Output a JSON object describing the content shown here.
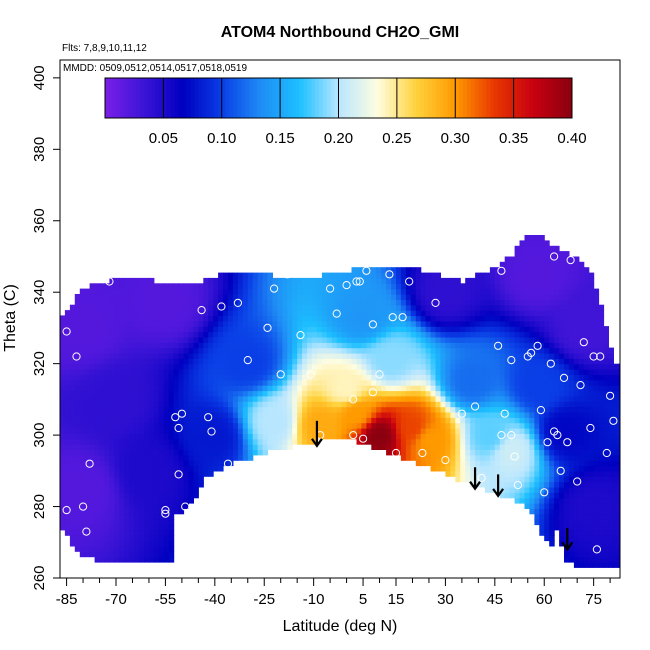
{
  "chart_data": {
    "type": "heatmap",
    "title": "ATOM4 Northbound CH2O_GMI",
    "flights_label": "Flts: 7,8,9,10,11,12",
    "dates_label": "MMDD: 0509,0512,0514,0517,0518,0519",
    "xlabel": "Latitude (deg N)",
    "ylabel": "Theta (C)",
    "xlim": [
      -87,
      83
    ],
    "ylim": [
      260,
      405
    ],
    "x_ticks": [
      -85,
      -70,
      -55,
      -40,
      -25,
      -10,
      5,
      15,
      30,
      45,
      60,
      75
    ],
    "x_ticks_minor": [
      -80,
      -75,
      -65,
      -60,
      -50,
      -45,
      -35,
      -30,
      -20,
      -15,
      -5,
      0,
      10,
      20,
      25,
      35,
      40,
      50,
      55,
      65,
      70,
      80
    ],
    "y_ticks": [
      260,
      280,
      300,
      320,
      340,
      360,
      380,
      400
    ],
    "colorbar": {
      "range": [
        0.0,
        0.4
      ],
      "ticks": [
        "0.05",
        "0.10",
        "0.15",
        "0.20",
        "0.25",
        "0.30",
        "0.35",
        "0.40"
      ],
      "colors": [
        "#7a1fe8",
        "#3b14d6",
        "#0000c0",
        "#0a3ee6",
        "#1f8cf5",
        "#1dc0ff",
        "#b8e6ff",
        "#fffde0",
        "#ffd23c",
        "#ff9a00",
        "#e83800",
        "#c80010",
        "#8a0010"
      ]
    },
    "upper_envelope": [
      [
        -87,
        332
      ],
      [
        -80,
        341
      ],
      [
        -70,
        344
      ],
      [
        -55,
        343
      ],
      [
        -45,
        343
      ],
      [
        -35,
        346
      ],
      [
        -25,
        345
      ],
      [
        -15,
        344
      ],
      [
        -5,
        345
      ],
      [
        5,
        347
      ],
      [
        15,
        347
      ],
      [
        25,
        346
      ],
      [
        35,
        343
      ],
      [
        45,
        347
      ],
      [
        50,
        350
      ],
      [
        55,
        357
      ],
      [
        60,
        355
      ],
      [
        65,
        352
      ],
      [
        70,
        350
      ],
      [
        75,
        344
      ],
      [
        78,
        333
      ],
      [
        80,
        325
      ],
      [
        82,
        320
      ]
    ],
    "lower_envelope": [
      [
        -87,
        274
      ],
      [
        -80,
        266
      ],
      [
        -70,
        264
      ],
      [
        -60,
        264
      ],
      [
        -53,
        264
      ],
      [
        -53,
        278
      ],
      [
        -48,
        279
      ],
      [
        -43,
        288
      ],
      [
        -35,
        292
      ],
      [
        -25,
        295
      ],
      [
        -15,
        297
      ],
      [
        -5,
        299
      ],
      [
        5,
        298
      ],
      [
        15,
        294
      ],
      [
        25,
        291
      ],
      [
        35,
        287
      ],
      [
        45,
        284
      ],
      [
        55,
        280
      ],
      [
        60,
        271
      ],
      [
        62,
        268
      ],
      [
        64,
        275
      ],
      [
        66,
        265
      ],
      [
        70,
        263
      ],
      [
        82,
        263
      ]
    ],
    "hotspots": [
      {
        "lat": 10,
        "theta": 300,
        "value": 0.4
      },
      {
        "lat": 3,
        "theta": 306,
        "value": 0.3
      },
      {
        "lat": -8,
        "theta": 303,
        "value": 0.29
      },
      {
        "lat": 20,
        "theta": 302,
        "value": 0.33
      },
      {
        "lat": 25,
        "theta": 299,
        "value": 0.3
      },
      {
        "lat": 0,
        "theta": 313,
        "value": 0.24
      },
      {
        "lat": -22,
        "theta": 304,
        "value": 0.2
      },
      {
        "lat": 13,
        "theta": 321,
        "value": 0.19
      },
      {
        "lat": 5,
        "theta": 333,
        "value": 0.14
      },
      {
        "lat": 44,
        "theta": 300,
        "value": 0.18
      },
      {
        "lat": 50,
        "theta": 296,
        "value": 0.21
      },
      {
        "lat": 38,
        "theta": 315,
        "value": 0.12
      },
      {
        "lat": 58,
        "theta": 314,
        "value": 0.1
      },
      {
        "lat": -30,
        "theta": 320,
        "value": 0.1
      },
      {
        "lat": -40,
        "theta": 300,
        "value": 0.08
      },
      {
        "lat": 66,
        "theta": 301,
        "value": 0.07
      },
      {
        "lat": -70,
        "theta": 310,
        "value": 0.04
      },
      {
        "lat": -60,
        "theta": 290,
        "value": 0.05
      },
      {
        "lat": -80,
        "theta": 330,
        "value": 0.02
      },
      {
        "lat": -80,
        "theta": 285,
        "value": 0.02
      },
      {
        "lat": -55,
        "theta": 337,
        "value": 0.02
      },
      {
        "lat": 72,
        "theta": 330,
        "value": 0.03
      },
      {
        "lat": 75,
        "theta": 280,
        "value": 0.05
      },
      {
        "lat": 58,
        "theta": 345,
        "value": 0.02
      },
      {
        "lat": 30,
        "theta": 340,
        "value": 0.04
      }
    ],
    "points": [
      [
        -85,
        329
      ],
      [
        -82,
        322
      ],
      [
        -85,
        279
      ],
      [
        -80,
        280
      ],
      [
        -79,
        273
      ],
      [
        -78,
        292
      ],
      [
        -72,
        343
      ],
      [
        -55,
        278
      ],
      [
        -55,
        279
      ],
      [
        -51,
        289
      ],
      [
        -52,
        305
      ],
      [
        -50,
        306
      ],
      [
        -51,
        302
      ],
      [
        -49,
        280
      ],
      [
        -51,
        276
      ],
      [
        -44,
        335
      ],
      [
        -42,
        305
      ],
      [
        -41,
        301
      ],
      [
        -38,
        336
      ],
      [
        -36,
        292
      ],
      [
        -33,
        337
      ],
      [
        -30,
        321
      ],
      [
        -24,
        330
      ],
      [
        -22,
        341
      ],
      [
        -20,
        317
      ],
      [
        -18,
        345
      ],
      [
        -14,
        328
      ],
      [
        -11,
        317
      ],
      [
        -5,
        341
      ],
      [
        -3,
        334
      ],
      [
        0,
        342
      ],
      [
        3,
        343
      ],
      [
        4,
        343
      ],
      [
        6,
        346
      ],
      [
        8,
        331
      ],
      [
        10,
        317
      ],
      [
        8,
        312
      ],
      [
        2,
        310
      ],
      [
        5,
        299
      ],
      [
        -8,
        300
      ],
      [
        2,
        300
      ],
      [
        13,
        345
      ],
      [
        14,
        333
      ],
      [
        17,
        333
      ],
      [
        19,
        343
      ],
      [
        15,
        295
      ],
      [
        23,
        295
      ],
      [
        27,
        337
      ],
      [
        30,
        293
      ],
      [
        35,
        306
      ],
      [
        39,
        308
      ],
      [
        41,
        288
      ],
      [
        46,
        325
      ],
      [
        47,
        346
      ],
      [
        48,
        306
      ],
      [
        47,
        300
      ],
      [
        50,
        321
      ],
      [
        50,
        300
      ],
      [
        51,
        294
      ],
      [
        52,
        286
      ],
      [
        55,
        322
      ],
      [
        56,
        323
      ],
      [
        59,
        307
      ],
      [
        61,
        298
      ],
      [
        62,
        320
      ],
      [
        63,
        301
      ],
      [
        63,
        350
      ],
      [
        64,
        300
      ],
      [
        66,
        316
      ],
      [
        65,
        290
      ],
      [
        67,
        298
      ],
      [
        68,
        349
      ],
      [
        70,
        287
      ],
      [
        72,
        326
      ],
      [
        74,
        302
      ],
      [
        75,
        322
      ],
      [
        76,
        268
      ],
      [
        77,
        322
      ],
      [
        79,
        295
      ],
      [
        80,
        311
      ],
      [
        81,
        304
      ],
      [
        71,
        314
      ],
      [
        60,
        284
      ],
      [
        58,
        325
      ]
    ],
    "arrows": [
      {
        "lat": -9,
        "theta_top": 304,
        "theta_bottom": 297
      },
      {
        "lat": 39,
        "theta_top": 291,
        "theta_bottom": 285
      },
      {
        "lat": 46,
        "theta_top": 289,
        "theta_bottom": 283
      },
      {
        "lat": 67,
        "theta_top": 274,
        "theta_bottom": 268
      }
    ]
  }
}
